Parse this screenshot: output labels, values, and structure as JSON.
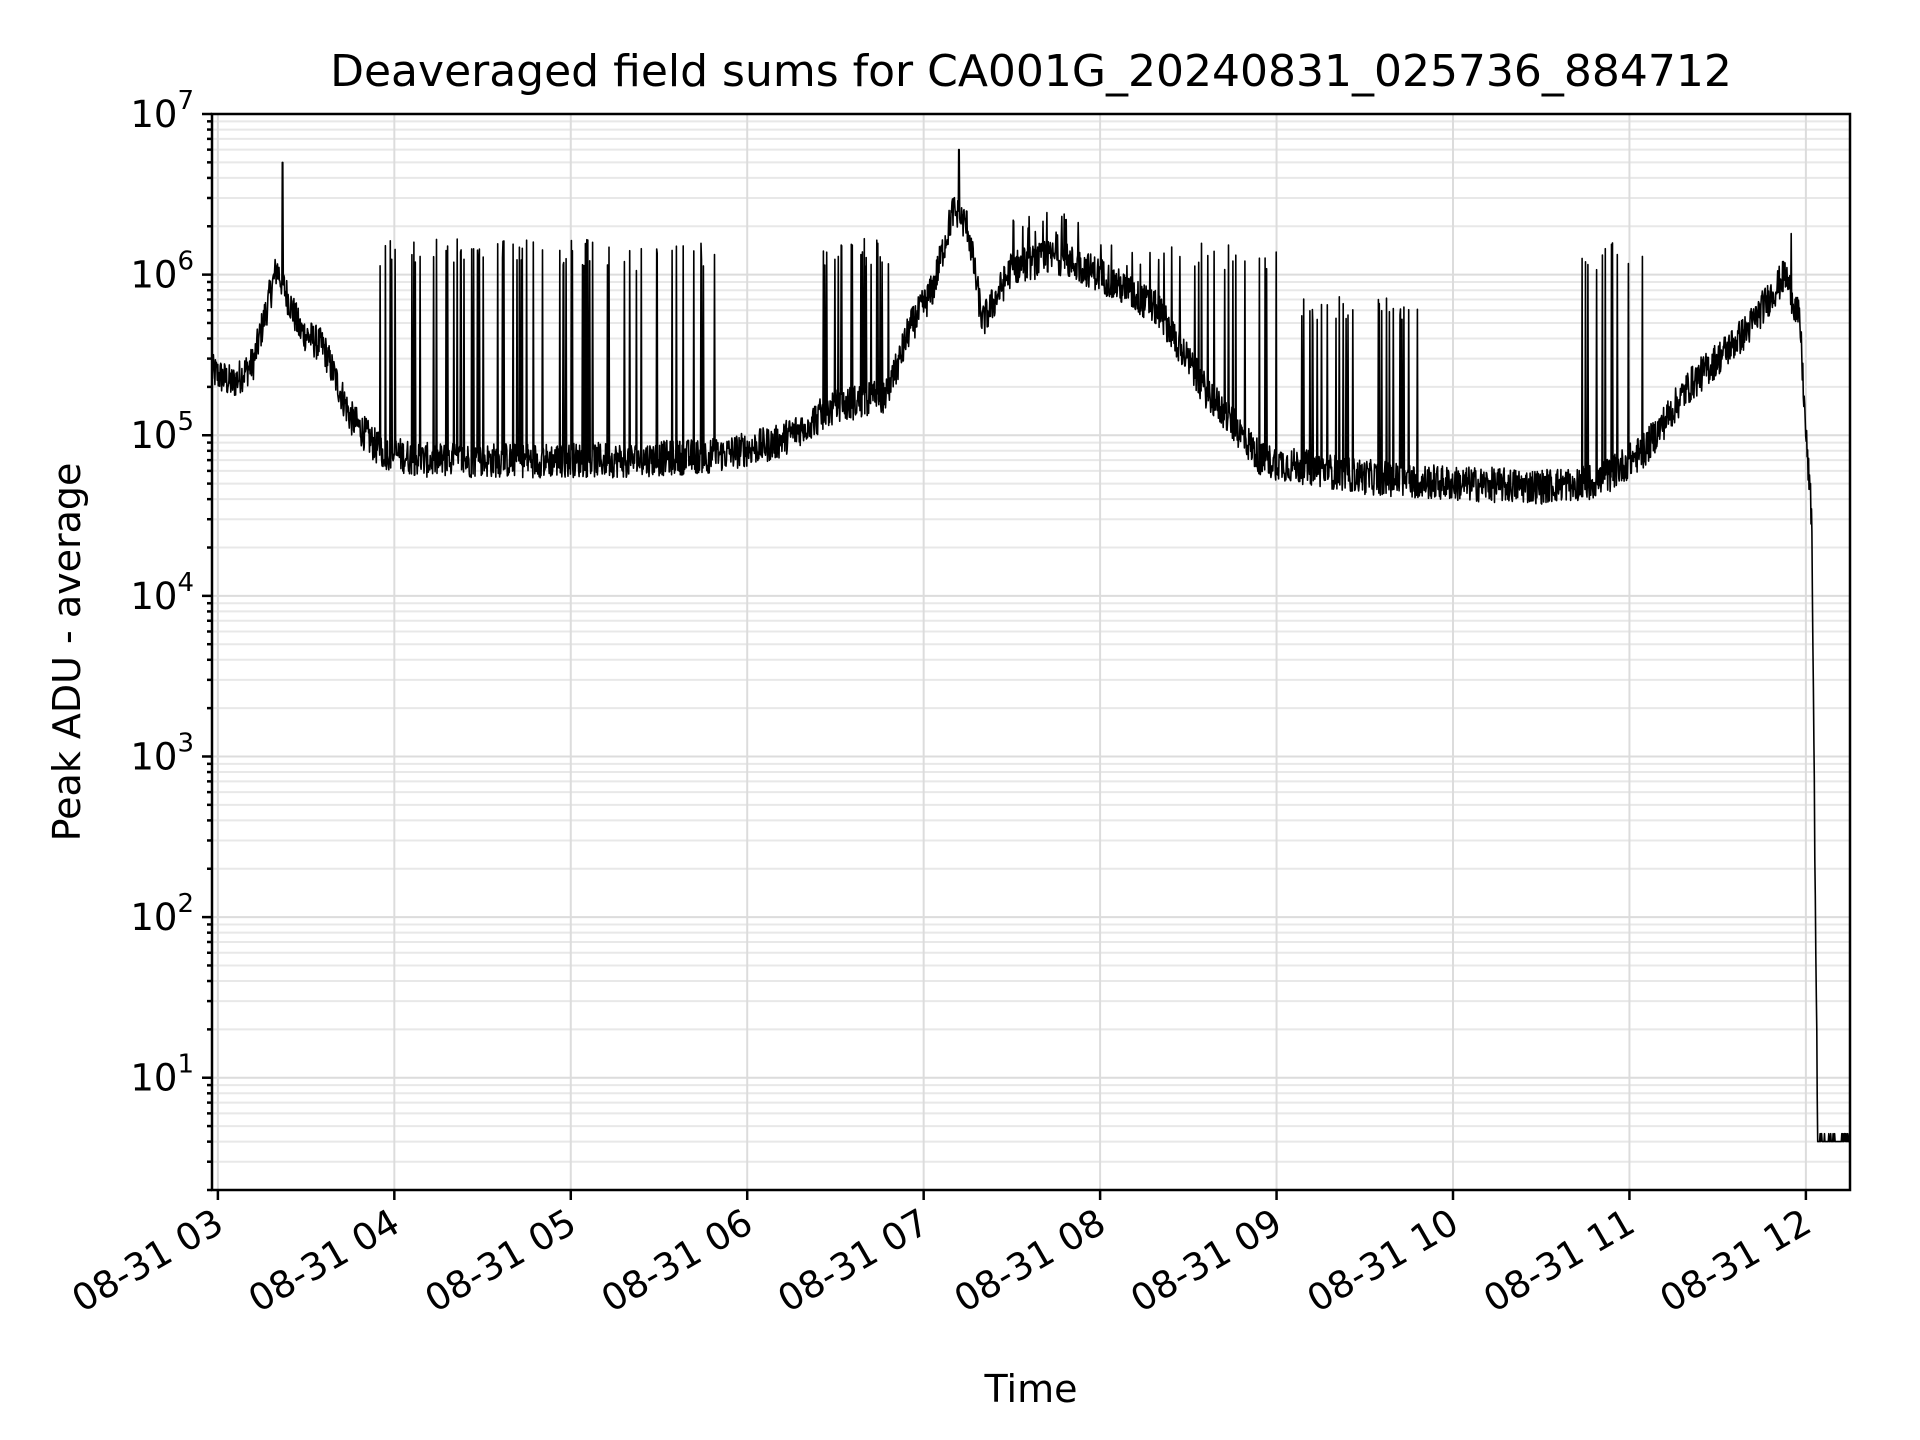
{
  "chart_data": {
    "type": "line",
    "title": "Deaveraged field sums for CA001G_20240831_025736_884712",
    "xlabel": "Time",
    "ylabel": "Peak ADU - average",
    "yscale": "log",
    "ylim": [
      2,
      10000000
    ],
    "xlim": [
      "2024-08-31 02:58",
      "2024-08-31 12:15"
    ],
    "grid": true,
    "x_ticks": [
      "08-31 03",
      "08-31 04",
      "08-31 05",
      "08-31 06",
      "08-31 07",
      "08-31 08",
      "08-31 09",
      "08-31 10",
      "08-31 11",
      "08-31 12"
    ],
    "y_ticks": [
      {
        "base": "10",
        "exp": "1"
      },
      {
        "base": "10",
        "exp": "2"
      },
      {
        "base": "10",
        "exp": "3"
      },
      {
        "base": "10",
        "exp": "4"
      },
      {
        "base": "10",
        "exp": "5"
      },
      {
        "base": "10",
        "exp": "6"
      },
      {
        "base": "10",
        "exp": "7"
      }
    ],
    "series": [
      {
        "color": "#000000",
        "baseline": [
          [
            "2024-08-31 02:58",
            250000
          ],
          [
            "2024-08-31 03:05",
            210000
          ],
          [
            "2024-08-31 03:12",
            280000
          ],
          [
            "2024-08-31 03:20",
            1100000
          ],
          [
            "2024-08-31 03:28",
            450000
          ],
          [
            "2024-08-31 03:36",
            350000
          ],
          [
            "2024-08-31 03:45",
            130000
          ],
          [
            "2024-08-31 03:55",
            80000
          ],
          [
            "2024-08-31 04:10",
            70000
          ],
          [
            "2024-08-31 04:40",
            70000
          ],
          [
            "2024-08-31 05:20",
            70000
          ],
          [
            "2024-08-31 05:50",
            75000
          ],
          [
            "2024-08-31 06:10",
            90000
          ],
          [
            "2024-08-31 06:30",
            150000
          ],
          [
            "2024-08-31 06:48",
            180000
          ],
          [
            "2024-08-31 06:55",
            450000
          ],
          [
            "2024-08-31 07:03",
            800000
          ],
          [
            "2024-08-31 07:10",
            2500000
          ],
          [
            "2024-08-31 07:15",
            2000000
          ],
          [
            "2024-08-31 07:20",
            500000
          ],
          [
            "2024-08-31 07:30",
            1100000
          ],
          [
            "2024-08-31 07:45",
            1300000
          ],
          [
            "2024-08-31 08:00",
            1000000
          ],
          [
            "2024-08-31 08:20",
            600000
          ],
          [
            "2024-08-31 08:35",
            200000
          ],
          [
            "2024-08-31 08:55",
            70000
          ],
          [
            "2024-08-31 09:30",
            55000
          ],
          [
            "2024-08-31 10:00",
            50000
          ],
          [
            "2024-08-31 10:30",
            48000
          ],
          [
            "2024-08-31 10:50",
            52000
          ],
          [
            "2024-08-31 11:05",
            80000
          ],
          [
            "2024-08-31 11:20",
            200000
          ],
          [
            "2024-08-31 11:40",
            450000
          ],
          [
            "2024-08-31 11:53",
            1000000
          ],
          [
            "2024-08-31 11:58",
            500000
          ],
          [
            "2024-08-31 12:00",
            100000
          ],
          [
            "2024-08-31 12:02",
            30000
          ],
          [
            "2024-08-31 12:04",
            4
          ],
          [
            "2024-08-31 12:15",
            4
          ]
        ],
        "peaks": [
          [
            "2024-08-31 03:22",
            5000000
          ],
          [
            "2024-08-31 07:12",
            6000000
          ],
          [
            "2024-08-31 11:55",
            1800000
          ]
        ],
        "dense_spike_ranges": [
          [
            "2024-08-31 03:55",
            "2024-08-31 05:10",
            1600000
          ],
          [
            "2024-08-31 05:10",
            "2024-08-31 05:50",
            1500000
          ],
          [
            "2024-08-31 06:20",
            "2024-08-31 06:50",
            1600000
          ],
          [
            "2024-08-31 07:30",
            "2024-08-31 08:00",
            2500000
          ],
          [
            "2024-08-31 08:00",
            "2024-08-31 09:05",
            1500000
          ],
          [
            "2024-08-31 09:05",
            "2024-08-31 09:50",
            700000
          ],
          [
            "2024-08-31 10:40",
            "2024-08-31 11:05",
            1500000
          ]
        ]
      }
    ]
  }
}
